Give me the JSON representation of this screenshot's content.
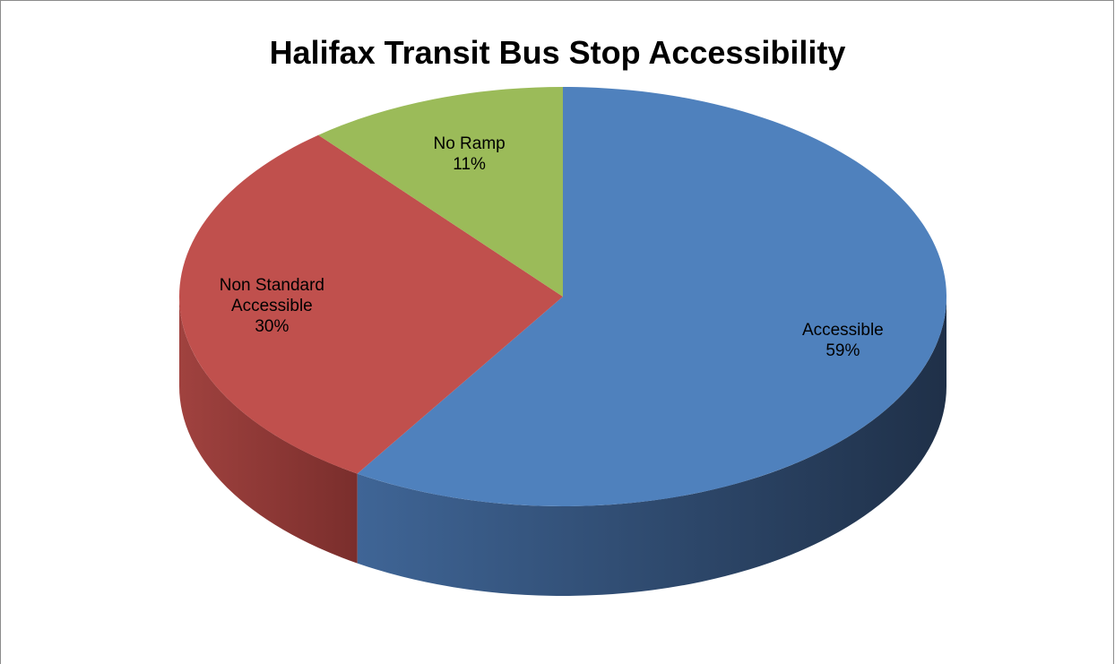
{
  "chart_data": {
    "type": "pie",
    "style": "3d",
    "title": "Halifax Transit Bus Stop Accessibility",
    "start_angle_degrees": 0,
    "direction": "clockwise",
    "slices": [
      {
        "label": "Accessible",
        "value": 59,
        "percent_label": "59%",
        "color": "#4F81BD",
        "side_dark": "#1F3048",
        "side_light": "#3F6596"
      },
      {
        "label": "Non Standard Accessible",
        "label_lines": [
          "Non Standard",
          "Accessible"
        ],
        "value": 30,
        "percent_label": "30%",
        "color": "#C0504D",
        "side_dark": "#7A2E2C",
        "side_light": "#A0423F"
      },
      {
        "label": "No Ramp",
        "value": 11,
        "percent_label": "11%",
        "color": "#9BBB59",
        "side_dark": "#5F7A33",
        "side_light": "#809C48"
      }
    ],
    "legend": "none",
    "data_labels": "category name and percentage"
  }
}
